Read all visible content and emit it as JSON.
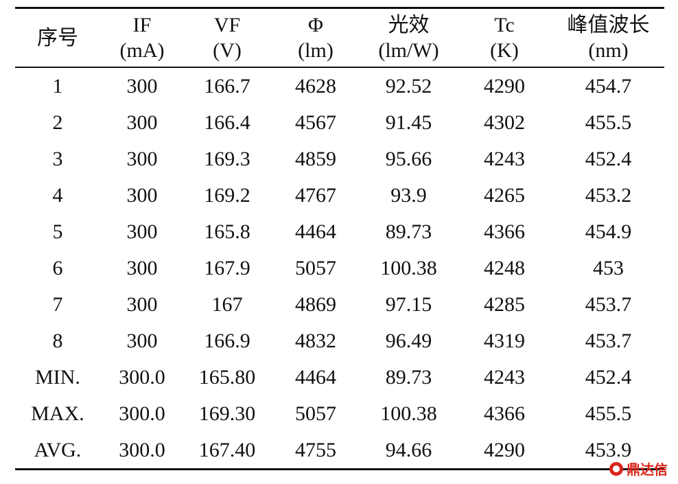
{
  "table": {
    "header": [
      [
        "序号"
      ],
      [
        "IF",
        "(mA)"
      ],
      [
        "VF",
        "(V)"
      ],
      [
        "Φ",
        "(lm)"
      ],
      [
        "光效",
        "(lm/W)"
      ],
      [
        "Tc",
        "(K)"
      ],
      [
        "峰值波长",
        "(nm)"
      ]
    ],
    "rows": [
      [
        "1",
        "300",
        "166.7",
        "4628",
        "92.52",
        "4290",
        "454.7"
      ],
      [
        "2",
        "300",
        "166.4",
        "4567",
        "91.45",
        "4302",
        "455.5"
      ],
      [
        "3",
        "300",
        "169.3",
        "4859",
        "95.66",
        "4243",
        "452.4"
      ],
      [
        "4",
        "300",
        "169.2",
        "4767",
        "93.9",
        "4265",
        "453.2"
      ],
      [
        "5",
        "300",
        "165.8",
        "4464",
        "89.73",
        "4366",
        "454.9"
      ],
      [
        "6",
        "300",
        "167.9",
        "5057",
        "100.38",
        "4248",
        "453"
      ],
      [
        "7",
        "300",
        "167",
        "4869",
        "97.15",
        "4285",
        "453.7"
      ],
      [
        "8",
        "300",
        "166.9",
        "4832",
        "96.49",
        "4319",
        "453.7"
      ],
      [
        "MIN.",
        "300.0",
        "165.80",
        "4464",
        "89.73",
        "4243",
        "452.4"
      ],
      [
        "MAX.",
        "300.0",
        "169.30",
        "5057",
        "100.38",
        "4366",
        "455.5"
      ],
      [
        "AVG.",
        "300.0",
        "167.40",
        "4755",
        "94.66",
        "4290",
        "453.9"
      ]
    ]
  },
  "watermark": "鼎达信"
}
